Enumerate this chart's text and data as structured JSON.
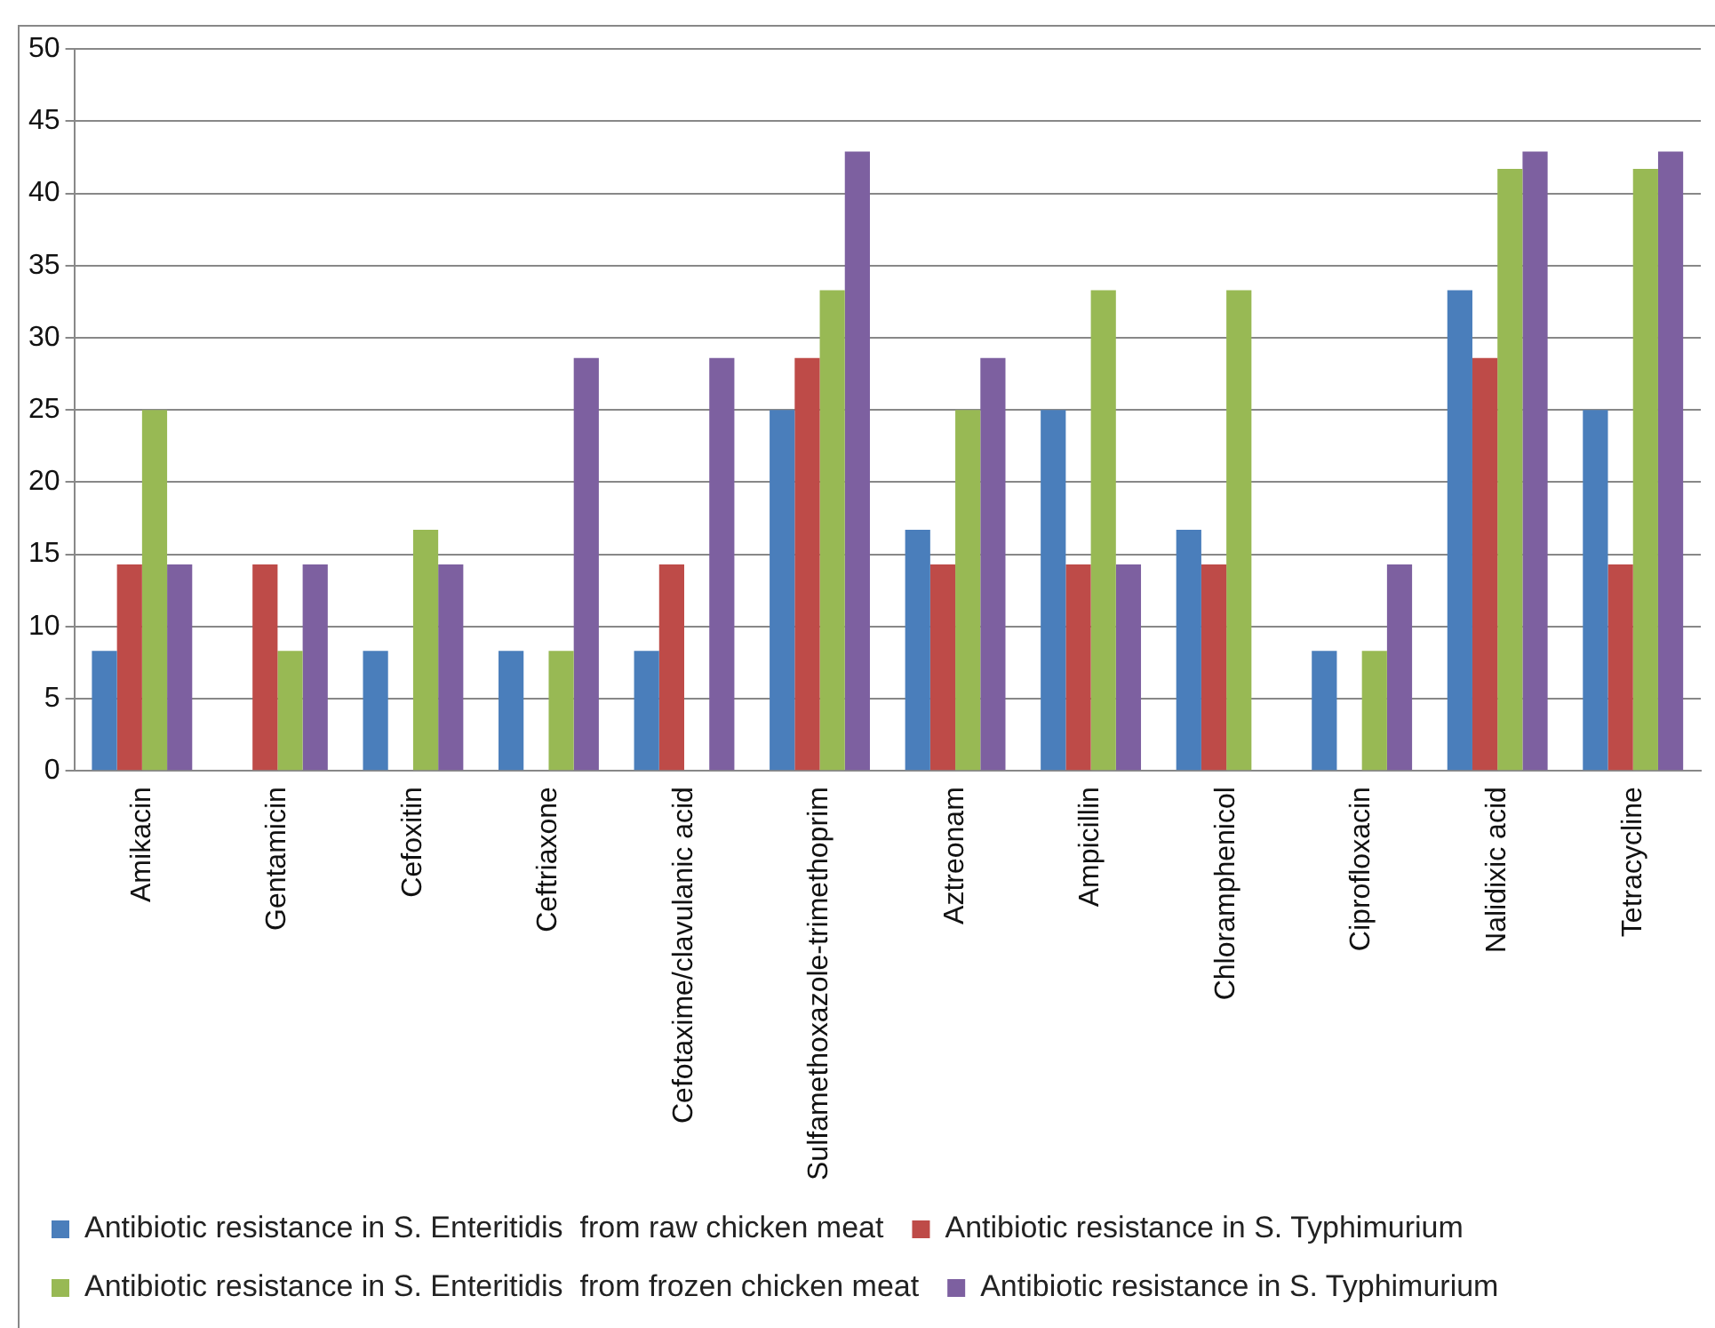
{
  "chart_data": {
    "type": "bar",
    "categories": [
      "Amikacin",
      "Gentamicin",
      "Cefoxitin",
      "Ceftriaxone",
      "Cefotaxime/clavulanic acid",
      "Sulfamethoxazole-trimethoprim",
      "Aztreonam",
      "Ampicillin",
      "Chloramphenicol",
      "Ciprofloxacin",
      "Nalidixic acid",
      "Tetracycline"
    ],
    "series": [
      {
        "name": "Antibiotic resistance in S. Enteritidis  from raw chicken meat",
        "color": "#4a7ebb",
        "values": [
          8.3,
          0,
          8.3,
          8.3,
          8.3,
          25,
          16.7,
          25,
          16.7,
          8.3,
          33.3,
          25
        ]
      },
      {
        "name": "Antibiotic resistance in S. Typhimurium",
        "color": "#be4b48",
        "values": [
          14.3,
          14.3,
          0,
          0,
          14.3,
          28.6,
          14.3,
          14.3,
          14.3,
          0,
          28.6,
          14.3
        ]
      },
      {
        "name": "Antibiotic resistance in S. Enteritidis  from frozen chicken meat",
        "color": "#98b954",
        "values": [
          25,
          8.3,
          16.7,
          8.3,
          0,
          33.3,
          25,
          33.3,
          33.3,
          8.3,
          41.7,
          41.7
        ]
      },
      {
        "name": "Antibiotic resistance in S. Typhimurium",
        "color": "#7d60a0",
        "values": [
          14.3,
          14.3,
          14.3,
          28.6,
          28.6,
          42.9,
          28.6,
          14.3,
          0,
          14.3,
          42.9,
          42.9
        ]
      }
    ],
    "ylim": [
      0,
      50
    ],
    "yticks": [
      0,
      5,
      10,
      15,
      20,
      25,
      30,
      35,
      40,
      45,
      50
    ],
    "grid": "y",
    "legend": "bottom"
  }
}
